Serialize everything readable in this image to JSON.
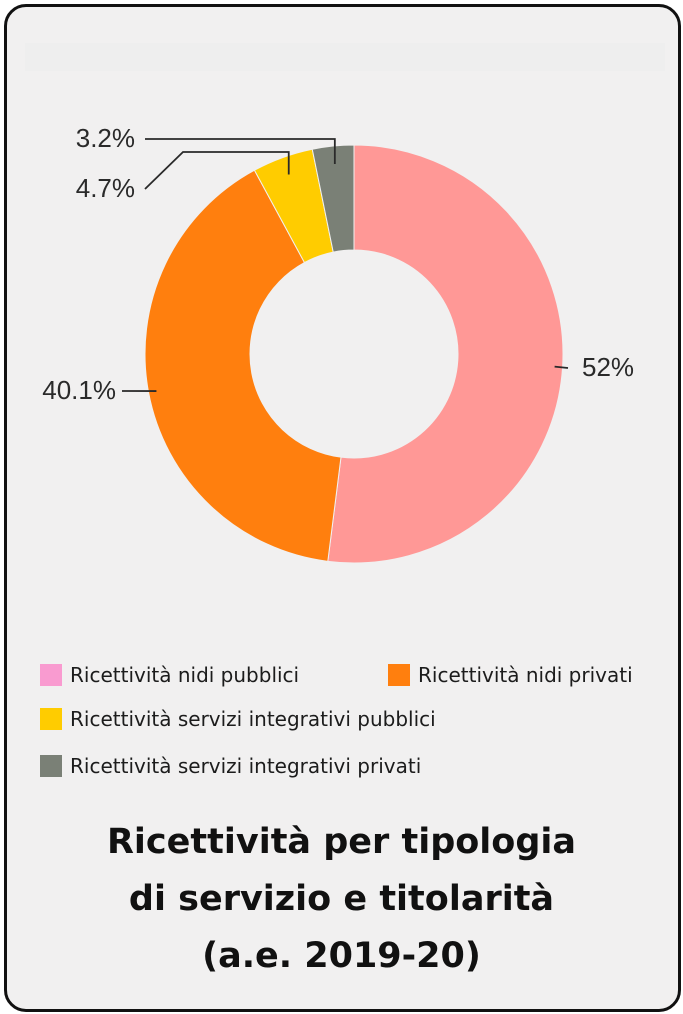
{
  "chart_data": {
    "type": "pie",
    "donut": true,
    "title_lines": [
      "Ricettività per tipologia",
      "di servizio e titolarità",
      "(a.e. 2019-20)"
    ],
    "slices": [
      {
        "name": "Ricettività nidi pubblici",
        "value": 52,
        "label": "52%",
        "color": "#ff9896",
        "legend_color": "#f99bd0"
      },
      {
        "name": "Ricettività nidi privati",
        "value": 40.1,
        "label": "40.1%",
        "color": "#ff7f0e",
        "legend_color": "#ff7f0e"
      },
      {
        "name": "Ricettività servizi integrativi pubblici",
        "value": 4.7,
        "label": "4.7%",
        "color": "#ffcc00",
        "legend_color": "#ffcc00"
      },
      {
        "name": "Ricettività servizi integrativi privati",
        "value": 3.2,
        "label": "3.2%",
        "color": "#7a8076",
        "legend_color": "#7a8076"
      }
    ],
    "legend_position": "bottom"
  }
}
